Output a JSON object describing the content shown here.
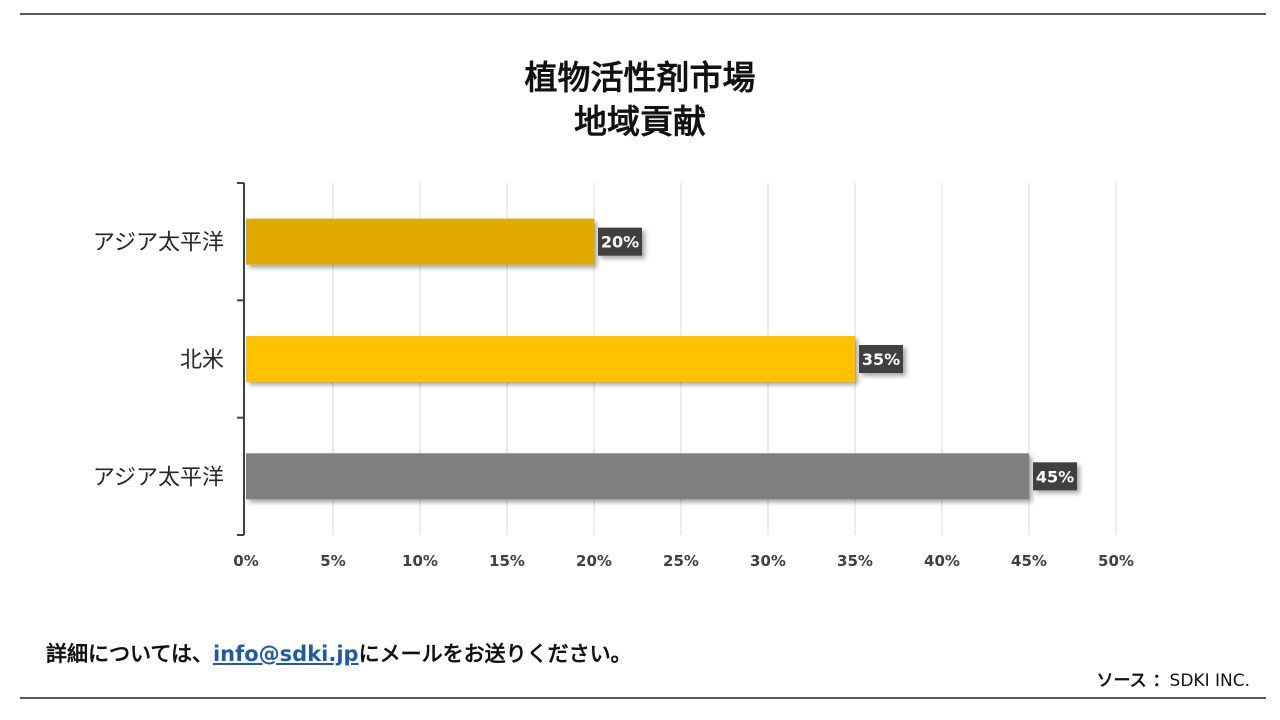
{
  "title": {
    "line1": "植物活性剤市場",
    "line2": "地域貢献"
  },
  "chart_data": {
    "type": "bar",
    "orientation": "horizontal",
    "categories": [
      "アジア太平洋",
      "北米",
      "アジア太平洋"
    ],
    "values": [
      20,
      35,
      45
    ],
    "value_labels": [
      "20%",
      "35%",
      "45%"
    ],
    "bar_colors": [
      "#e1aa00",
      "#ffc000",
      "#7f7f7f"
    ],
    "x_ticks": [
      "0%",
      "5%",
      "10%",
      "15%",
      "20%",
      "25%",
      "30%",
      "35%",
      "40%",
      "45%",
      "50%"
    ],
    "xlim": [
      0,
      50
    ],
    "grid": true,
    "legend": "none"
  },
  "footer": {
    "prefix": "詳細については、",
    "email": "info@sdki.jp",
    "suffix": "にメールをお送りください。",
    "source_label": "ソース ：",
    "source_value": "SDKI INC."
  },
  "colors": {
    "label_bg": "#404040",
    "label_text": "#ffffff",
    "grid": "#d9d9d9",
    "axis": "#404040",
    "link": "#1f5aa6"
  }
}
